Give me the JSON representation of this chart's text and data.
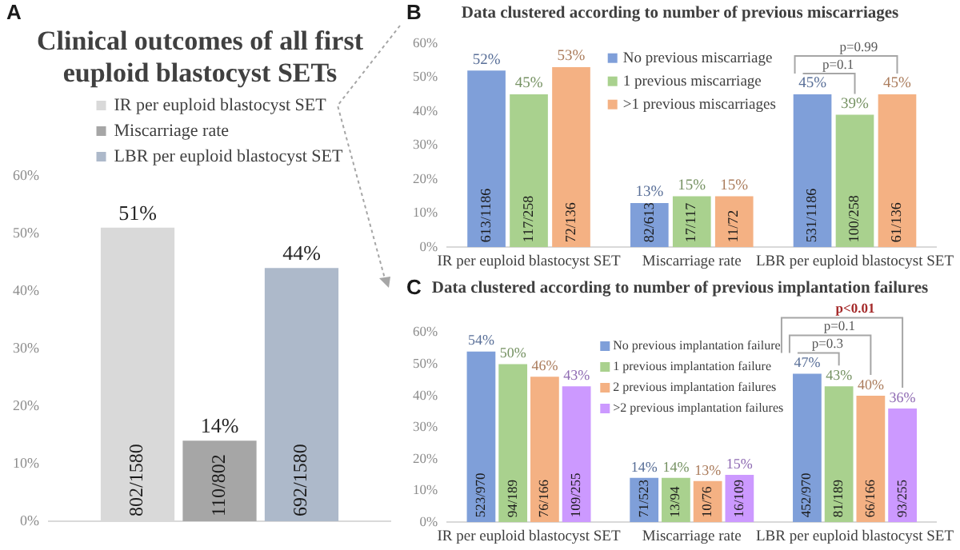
{
  "chart_data": [
    {
      "type": "bar",
      "title": "Clinical outcomes of all first euploid blastocyst SETs",
      "categories": [
        null
      ],
      "series": [
        {
          "name": "IR per euploid blastocyst SET",
          "color": "#d9d9d9",
          "values": [
            51
          ],
          "value_labels": [
            "51%"
          ]
        },
        {
          "name": "Miscarriage rate",
          "color": "#a6a6a6",
          "values": [
            14
          ],
          "value_labels": [
            "14%"
          ]
        },
        {
          "name": "LBR per euploid blastocyst SET",
          "color": "#adb9ca",
          "values": [
            44
          ],
          "value_labels": [
            "44%"
          ]
        }
      ],
      "ylim": [
        0,
        60
      ],
      "yticks": [
        {
          "value": 0,
          "label": "0%"
        },
        {
          "value": 10,
          "label": "10%"
        },
        {
          "value": 20,
          "label": "20%"
        },
        {
          "value": 30,
          "label": "30%"
        },
        {
          "value": 40,
          "label": "40%"
        },
        {
          "value": 50,
          "label": "50%"
        },
        {
          "value": 60,
          "label": "60%"
        }
      ],
      "legend": "top",
      "annotations": [
        "A",
        "802/1580",
        "110/802",
        "692/1580"
      ]
    },
    {
      "type": "bar",
      "title": "Data clustered according to number of previous miscarriages",
      "categories": [
        "IR per euploid blastocyst SET",
        "Miscarriage rate",
        "LBR per euploid blastocyst SET"
      ],
      "series": [
        {
          "name": "No previous miscarriage",
          "color": "#7f9fd9",
          "values": [
            52,
            13,
            45
          ],
          "value_labels": [
            "52%",
            "13%",
            "45%"
          ]
        },
        {
          "name": "1 previous miscarriage",
          "color": "#a9d18e",
          "values": [
            45,
            15,
            39
          ],
          "value_labels": [
            "45%",
            "15%",
            "39%"
          ]
        },
        {
          "name": ">1 previous miscarriages",
          "color": "#f4b183",
          "values": [
            53,
            15,
            45
          ],
          "value_labels": [
            "53%",
            "15%",
            "45%"
          ]
        }
      ],
      "ylim": [
        0,
        60
      ],
      "yticks": [
        {
          "value": 0,
          "label": "0%"
        },
        {
          "value": 10,
          "label": "10%"
        },
        {
          "value": 20,
          "label": "20%"
        },
        {
          "value": 30,
          "label": "30%"
        },
        {
          "value": 40,
          "label": "40%"
        },
        {
          "value": 50,
          "label": "50%"
        },
        {
          "value": 60,
          "label": "60%"
        }
      ],
      "legend": "top",
      "annotations": [
        "B",
        "613/1186",
        "117/258",
        "72/136",
        "82/613",
        "17/117",
        "11/72",
        "531/1186",
        "100/258",
        "61/136",
        "p=0.1",
        "p=0.99"
      ]
    },
    {
      "type": "bar",
      "title": "Data clustered according to number of previous implantation failures",
      "categories": [
        "IR per euploid blastocyst SET",
        "Miscarriage rate",
        "LBR per euploid blastocyst SET"
      ],
      "series": [
        {
          "name": "No previous implantation failure",
          "color": "#7f9fd9",
          "values": [
            54,
            14,
            47
          ],
          "value_labels": [
            "54%",
            "14%",
            "47%"
          ]
        },
        {
          "name": "1 previous implantation failure",
          "color": "#a9d18e",
          "values": [
            50,
            14,
            43
          ],
          "value_labels": [
            "50%",
            "14%",
            "43%"
          ]
        },
        {
          "name": "2 previous implantation failures",
          "color": "#f4b183",
          "values": [
            46,
            13,
            40
          ],
          "value_labels": [
            "46%",
            "13%",
            "40%"
          ]
        },
        {
          "name": ">2 previous implantation failures",
          "color": "#cc99ff",
          "values": [
            43,
            15,
            36
          ],
          "value_labels": [
            "43%",
            "15%",
            "36%"
          ]
        }
      ],
      "ylim": [
        0,
        60
      ],
      "yticks": [
        {
          "value": 0,
          "label": "0%"
        },
        {
          "value": 10,
          "label": "10%"
        },
        {
          "value": 20,
          "label": "20%"
        },
        {
          "value": 30,
          "label": "30%"
        },
        {
          "value": 40,
          "label": "40%"
        },
        {
          "value": 50,
          "label": "50%"
        },
        {
          "value": 60,
          "label": "60%"
        }
      ],
      "legend": "top",
      "annotations": [
        "C",
        "523/970",
        "94/189",
        "76/166",
        "109/255",
        "71/523",
        "13/94",
        "10/76",
        "16/109",
        "452/970",
        "81/189",
        "66/166",
        "93/255",
        "p=0.3",
        "p=0.1",
        "p<0.01"
      ]
    }
  ]
}
